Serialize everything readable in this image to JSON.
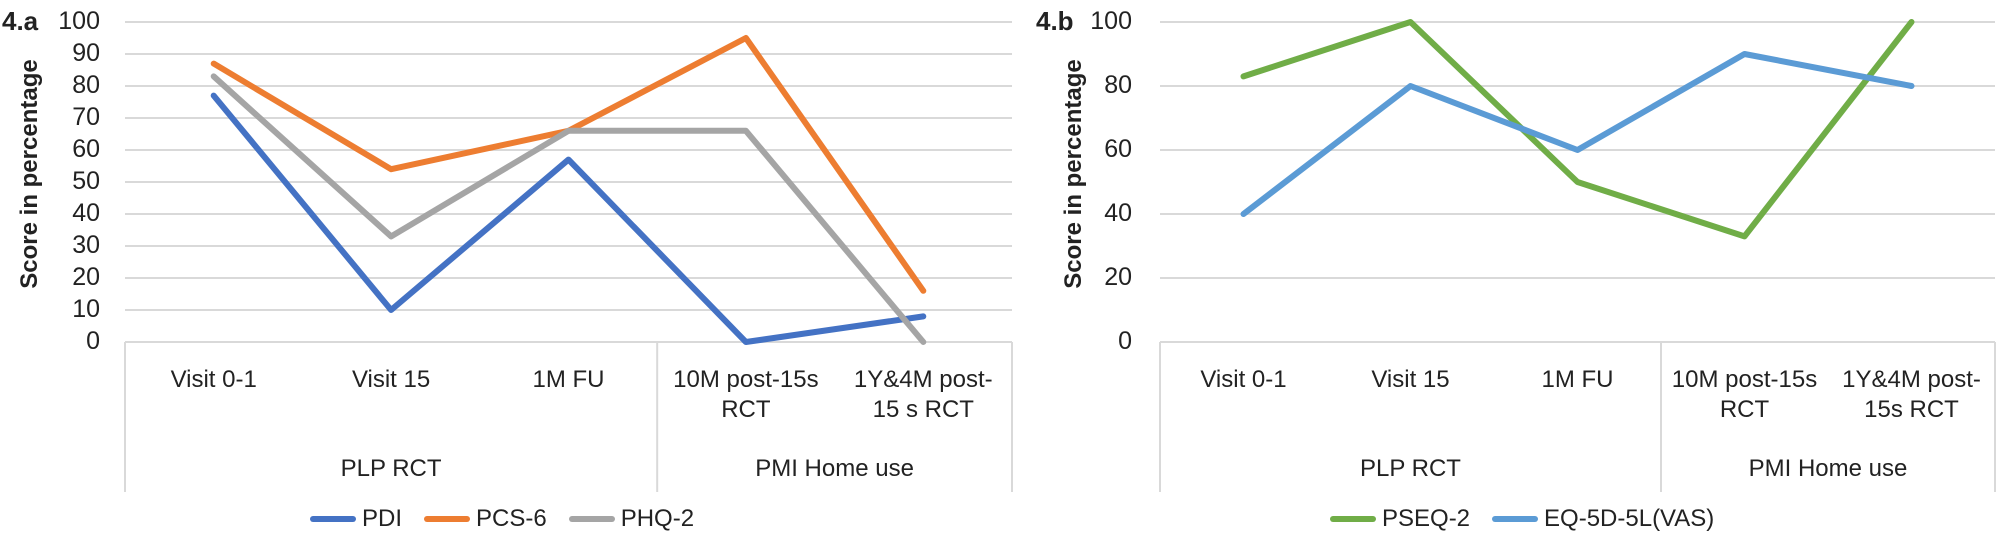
{
  "chart_data": [
    {
      "type": "line",
      "panel_label": "4.a",
      "title": "",
      "xlabel": "",
      "ylabel": "Score in percentage",
      "ylim": [
        0,
        100
      ],
      "yticks": [
        "100",
        "90",
        "80",
        "70",
        "60",
        "50",
        "40",
        "30",
        "20",
        "10",
        "0"
      ],
      "grid": true,
      "legend_position": "bottom",
      "categories": [
        "Visit 0-1",
        "Visit 15",
        "1M FU",
        "10M post-15s RCT",
        "1Y&4M post-15 s RCT"
      ],
      "category_lines": [
        [
          "Visit 0-1"
        ],
        [
          "Visit 15"
        ],
        [
          "1M FU"
        ],
        [
          "10M post-15s",
          "RCT"
        ],
        [
          "1Y&4M post-",
          "15 s RCT"
        ]
      ],
      "groups": [
        {
          "label": "PLP RCT",
          "span": 3
        },
        {
          "label": "PMI Home use",
          "span": 2
        }
      ],
      "series": [
        {
          "name": "PDI",
          "color": "#4472C4",
          "values": [
            77,
            10,
            57,
            0,
            8
          ]
        },
        {
          "name": "PCS-6",
          "color": "#ED7D31",
          "values": [
            87,
            54,
            66,
            95,
            16
          ]
        },
        {
          "name": "PHQ-2",
          "color": "#A5A5A5",
          "values": [
            83,
            33,
            66,
            66,
            0
          ]
        }
      ]
    },
    {
      "type": "line",
      "panel_label": "4.b",
      "title": "",
      "xlabel": "",
      "ylabel": "Score in percentage",
      "ylim": [
        0,
        100
      ],
      "yticks": [
        "100",
        "80",
        "60",
        "40",
        "20",
        "0"
      ],
      "grid": true,
      "legend_position": "bottom",
      "categories": [
        "Visit 0-1",
        "Visit 15",
        "1M FU",
        "10M post-15s RCT",
        "1Y&4M post-15s RCT"
      ],
      "category_lines": [
        [
          "Visit 0-1"
        ],
        [
          "Visit 15"
        ],
        [
          "1M FU"
        ],
        [
          "10M post-15s",
          "RCT"
        ],
        [
          "1Y&4M post-",
          "15s RCT"
        ]
      ],
      "groups": [
        {
          "label": "PLP RCT",
          "span": 3
        },
        {
          "label": "PMI Home use",
          "span": 2
        }
      ],
      "series": [
        {
          "name": "PSEQ-2",
          "color": "#70AD47",
          "values": [
            83,
            100,
            50,
            33,
            100
          ]
        },
        {
          "name": "EQ-5D-5L(VAS)",
          "color": "#5B9BD5",
          "values": [
            40,
            80,
            60,
            90,
            80
          ]
        }
      ]
    }
  ]
}
